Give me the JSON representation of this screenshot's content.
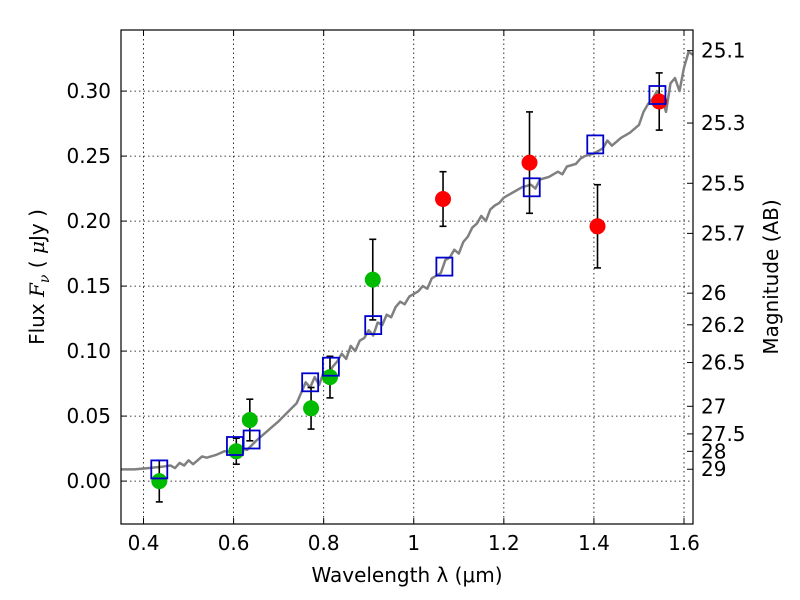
{
  "chart_data": {
    "type": "scatter",
    "xlabel": "Wavelength  λ (μm)",
    "ylabel_parts": [
      "Flux  ",
      "F",
      "ν",
      "  ( ",
      "μ",
      "Jy )"
    ],
    "y2label": "Magnitude (AB)",
    "xlim": [
      0.35,
      1.62
    ],
    "ylim": [
      -0.033,
      0.347
    ],
    "grid": true,
    "legend": "none",
    "x_ticks": [
      {
        "value": 0.4,
        "label": "0.4"
      },
      {
        "value": 0.6,
        "label": "0.6"
      },
      {
        "value": 0.8,
        "label": "0.8"
      },
      {
        "value": 1.0,
        "label": "1"
      },
      {
        "value": 1.2,
        "label": "1.2"
      },
      {
        "value": 1.4,
        "label": "1.4"
      },
      {
        "value": 1.6,
        "label": "1.6"
      }
    ],
    "y_ticks": [
      {
        "value": 0.0,
        "label": "0.00"
      },
      {
        "value": 0.05,
        "label": "0.05"
      },
      {
        "value": 0.1,
        "label": "0.10"
      },
      {
        "value": 0.15,
        "label": "0.15"
      },
      {
        "value": 0.2,
        "label": "0.20"
      },
      {
        "value": 0.25,
        "label": "0.25"
      },
      {
        "value": 0.3,
        "label": "0.30"
      }
    ],
    "mag_ticks": [
      {
        "value": 25.1,
        "label": "25.1"
      },
      {
        "value": 25.3,
        "label": "25.3"
      },
      {
        "value": 25.5,
        "label": "25.5"
      },
      {
        "value": 25.7,
        "label": "25.7"
      },
      {
        "value": 26,
        "label": "26"
      },
      {
        "value": 26.2,
        "label": "26.2"
      },
      {
        "value": 26.5,
        "label": "26.5"
      },
      {
        "value": 27,
        "label": "27"
      },
      {
        "value": 27.5,
        "label": "27.5"
      },
      {
        "value": 28,
        "label": "28"
      },
      {
        "value": 29,
        "label": "29"
      }
    ],
    "model_spectrum": {
      "color": "#808080",
      "points": [
        [
          0.35,
          0.009
        ],
        [
          0.38,
          0.009
        ],
        [
          0.41,
          0.01
        ],
        [
          0.44,
          0.011
        ],
        [
          0.46,
          0.012
        ],
        [
          0.47,
          0.01
        ],
        [
          0.48,
          0.014
        ],
        [
          0.49,
          0.012
        ],
        [
          0.5,
          0.016
        ],
        [
          0.51,
          0.013
        ],
        [
          0.52,
          0.016
        ],
        [
          0.53,
          0.019
        ],
        [
          0.54,
          0.018
        ],
        [
          0.56,
          0.02
        ],
        [
          0.58,
          0.023
        ],
        [
          0.6,
          0.022
        ],
        [
          0.62,
          0.025
        ],
        [
          0.63,
          0.024
        ],
        [
          0.65,
          0.031
        ],
        [
          0.66,
          0.034
        ],
        [
          0.68,
          0.04
        ],
        [
          0.7,
          0.046
        ],
        [
          0.72,
          0.053
        ],
        [
          0.74,
          0.06
        ],
        [
          0.75,
          0.068
        ],
        [
          0.76,
          0.076
        ],
        [
          0.77,
          0.072
        ],
        [
          0.78,
          0.08
        ],
        [
          0.79,
          0.074
        ],
        [
          0.8,
          0.084
        ],
        [
          0.81,
          0.082
        ],
        [
          0.82,
          0.088
        ],
        [
          0.83,
          0.092
        ],
        [
          0.84,
          0.098
        ],
        [
          0.85,
          0.094
        ],
        [
          0.86,
          0.104
        ],
        [
          0.87,
          0.1
        ],
        [
          0.88,
          0.108
        ],
        [
          0.89,
          0.11
        ],
        [
          0.9,
          0.116
        ],
        [
          0.91,
          0.112
        ],
        [
          0.92,
          0.122
        ],
        [
          0.93,
          0.12
        ],
        [
          0.94,
          0.128
        ],
        [
          0.95,
          0.126
        ],
        [
          0.96,
          0.134
        ],
        [
          0.97,
          0.138
        ],
        [
          0.98,
          0.136
        ],
        [
          0.99,
          0.142
        ],
        [
          1.0,
          0.144
        ],
        [
          1.01,
          0.146
        ],
        [
          1.02,
          0.15
        ],
        [
          1.03,
          0.148
        ],
        [
          1.04,
          0.156
        ],
        [
          1.05,
          0.158
        ],
        [
          1.06,
          0.16
        ],
        [
          1.07,
          0.17
        ],
        [
          1.08,
          0.172
        ],
        [
          1.09,
          0.178
        ],
        [
          1.1,
          0.175
        ],
        [
          1.11,
          0.184
        ],
        [
          1.12,
          0.188
        ],
        [
          1.13,
          0.195
        ],
        [
          1.14,
          0.198
        ],
        [
          1.15,
          0.204
        ],
        [
          1.16,
          0.2
        ],
        [
          1.17,
          0.209
        ],
        [
          1.18,
          0.212
        ],
        [
          1.19,
          0.214
        ],
        [
          1.2,
          0.218
        ],
        [
          1.21,
          0.22
        ],
        [
          1.22,
          0.222
        ],
        [
          1.24,
          0.226
        ],
        [
          1.26,
          0.228
        ],
        [
          1.27,
          0.225
        ],
        [
          1.28,
          0.232
        ],
        [
          1.3,
          0.234
        ],
        [
          1.32,
          0.238
        ],
        [
          1.33,
          0.236
        ],
        [
          1.34,
          0.242
        ],
        [
          1.36,
          0.244
        ],
        [
          1.37,
          0.248
        ],
        [
          1.38,
          0.25
        ],
        [
          1.4,
          0.252
        ],
        [
          1.42,
          0.256
        ],
        [
          1.43,
          0.262
        ],
        [
          1.44,
          0.258
        ],
        [
          1.46,
          0.264
        ],
        [
          1.48,
          0.268
        ],
        [
          1.5,
          0.274
        ],
        [
          1.51,
          0.284
        ],
        [
          1.52,
          0.29
        ],
        [
          1.53,
          0.294
        ],
        [
          1.54,
          0.3
        ],
        [
          1.55,
          0.296
        ],
        [
          1.56,
          0.284
        ],
        [
          1.57,
          0.306
        ],
        [
          1.58,
          0.31
        ],
        [
          1.59,
          0.3
        ],
        [
          1.6,
          0.318
        ],
        [
          1.61,
          0.33
        ],
        [
          1.62,
          0.328
        ]
      ]
    },
    "series": [
      {
        "marker": "circle",
        "color": "#00bb00",
        "points": [
          {
            "x": 0.435,
            "y": 0.0,
            "err": 0.016
          },
          {
            "x": 0.606,
            "y": 0.023,
            "err": 0.01
          },
          {
            "x": 0.636,
            "y": 0.047,
            "err": 0.016
          },
          {
            "x": 0.772,
            "y": 0.056,
            "err": 0.016
          },
          {
            "x": 0.814,
            "y": 0.08,
            "err": 0.016
          },
          {
            "x": 0.909,
            "y": 0.155,
            "err": 0.031
          }
        ]
      },
      {
        "marker": "circle",
        "color": "#ff0000",
        "points": [
          {
            "x": 1.065,
            "y": 0.217,
            "err": 0.021
          },
          {
            "x": 1.257,
            "y": 0.245,
            "err": 0.039
          },
          {
            "x": 1.408,
            "y": 0.196,
            "err": 0.032
          },
          {
            "x": 1.545,
            "y": 0.292,
            "err": 0.022
          }
        ]
      },
      {
        "marker": "square",
        "color": "#0000cc",
        "points": [
          {
            "x": 0.435,
            "y": 0.009
          },
          {
            "x": 0.603,
            "y": 0.027
          },
          {
            "x": 0.64,
            "y": 0.032
          },
          {
            "x": 0.77,
            "y": 0.076
          },
          {
            "x": 0.816,
            "y": 0.088
          },
          {
            "x": 0.91,
            "y": 0.12
          },
          {
            "x": 1.068,
            "y": 0.165
          },
          {
            "x": 1.262,
            "y": 0.226
          },
          {
            "x": 1.403,
            "y": 0.259
          },
          {
            "x": 1.541,
            "y": 0.297
          }
        ]
      }
    ]
  }
}
